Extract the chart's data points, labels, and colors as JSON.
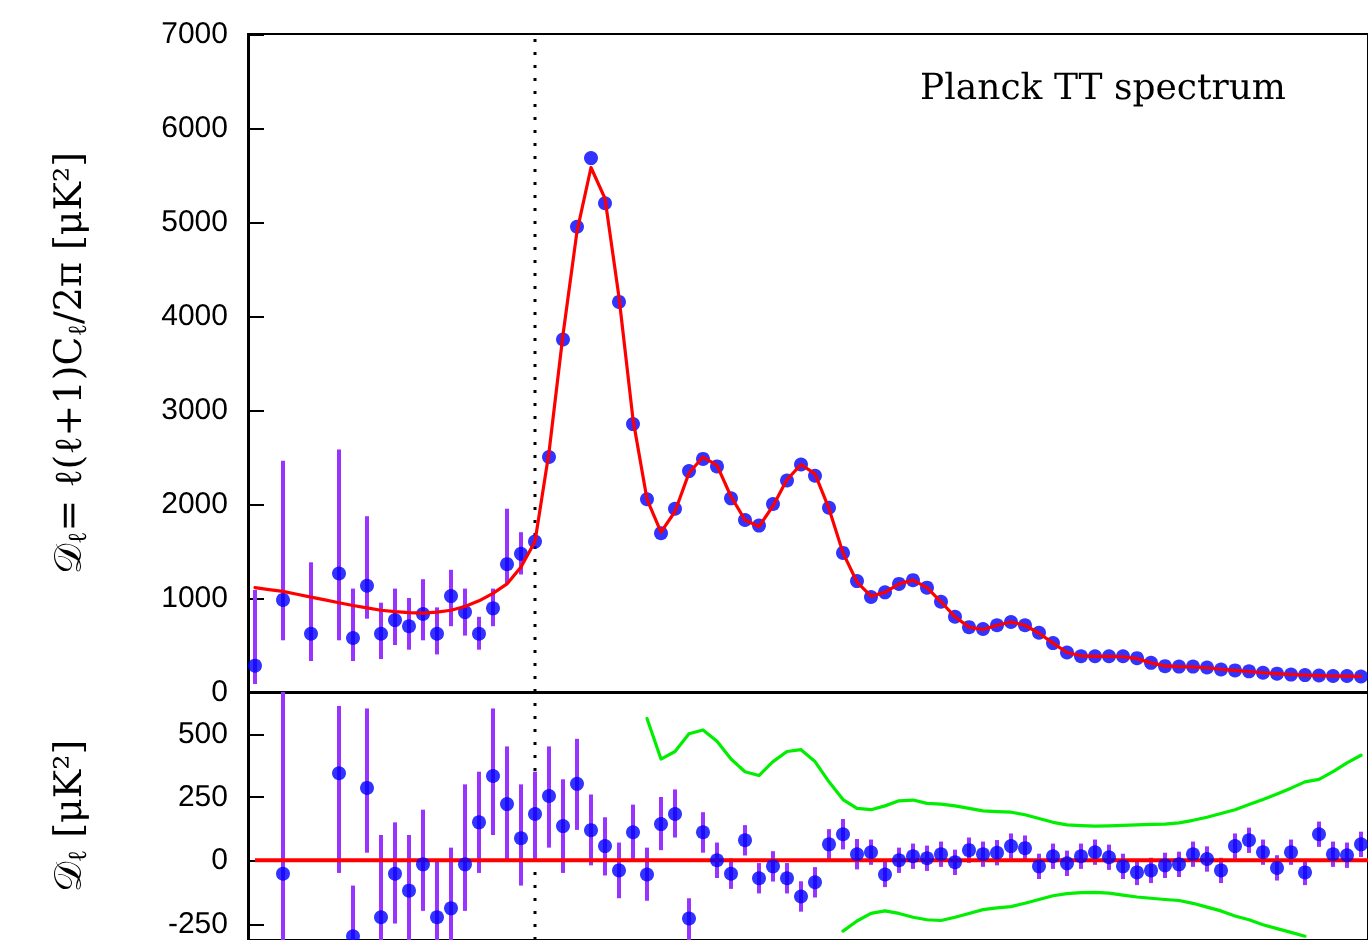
{
  "chart_data": [
    {
      "type": "scatter",
      "title": "Planck TT spectrum",
      "ylabel": "𝒟$_{ℓ}$= ℓ(ℓ+1)C$_{ℓ}$/2π [μK²]",
      "tick_labels": "y",
      "grid": false,
      "categories": [
        null,
        null,
        null,
        null,
        null,
        null,
        null,
        null,
        null,
        null,
        null,
        null,
        null,
        null,
        null,
        null,
        null,
        null,
        null,
        null,
        null,
        null,
        null,
        null,
        null,
        null,
        null,
        null,
        null,
        null,
        null,
        null,
        null,
        null,
        null,
        null,
        null,
        null,
        null,
        null,
        null,
        null,
        null,
        null,
        null,
        null,
        null,
        null,
        null,
        null,
        null,
        null,
        null,
        null,
        null,
        null,
        null,
        null,
        null,
        null,
        null,
        null,
        null,
        null,
        null,
        null,
        null,
        null,
        null,
        null,
        null,
        null,
        null,
        null,
        null,
        null,
        null,
        null,
        null,
        null
      ],
      "ylim": [
        0,
        7000
      ],
      "yticks": [
        0,
        1000,
        2000,
        3000,
        4000,
        5000,
        6000,
        7000
      ],
      "series": [
        {
          "type": "line",
          "color": "#ff0000",
          "marker": "none",
          "line_style": "solid",
          "values": [
            1110,
            1090,
            1070,
            1040,
            1010,
            980,
            950,
            920,
            895,
            870,
            855,
            845,
            840,
            850,
            870,
            910,
            970,
            1050,
            1150,
            1330,
            1600,
            2550,
            3800,
            4900,
            5580,
            5250,
            4200,
            2900,
            2050,
            1700,
            1920,
            2330,
            2500,
            2410,
            2080,
            1830,
            1760,
            1980,
            2260,
            2420,
            2320,
            1950,
            1480,
            1170,
            1020,
            1060,
            1150,
            1190,
            1110,
            960,
            800,
            690,
            665,
            710,
            745,
            710,
            625,
            520,
            420,
            385,
            380,
            378,
            375,
            355,
            310,
            278,
            270,
            268,
            258,
            242,
            230,
            218,
            205,
            195,
            186,
            180,
            174,
            170,
            168,
            165
          ]
        },
        {
          "color": "#0000ff",
          "marker": "circle",
          "values": [
            280,
            null,
            980,
            null,
            620,
            null,
            1260,
            575,
            1130,
            620,
            765,
            700,
            830,
            620,
            1020,
            850,
            620,
            890,
            1360,
            1470,
            1600,
            2500,
            3750,
            4950,
            5680,
            5200,
            4150,
            2850,
            2050,
            1690,
            1950,
            2350,
            2480,
            2400,
            2060,
            1830,
            1770,
            2000,
            2250,
            2420,
            2300,
            1960,
            1480,
            1180,
            1010,
            1060,
            1150,
            1190,
            1110,
            960,
            800,
            690,
            670,
            710,
            745,
            710,
            630,
            520,
            420,
            380,
            380,
            380,
            380,
            360,
            310,
            275,
            270,
            270,
            260,
            240,
            230,
            220,
            205,
            195,
            185,
            180,
            175,
            170,
            170,
            165
          ],
          "errors": [
            [
              85,
              1085
            ],
            null,
            [
              550,
              2460
            ],
            null,
            [
              330,
              1380
            ],
            null,
            [
              550,
              2580
            ],
            [
              330,
              1100
            ],
            [
              780,
              1870
            ],
            [
              350,
              950
            ],
            [
              500,
              1100
            ],
            [
              450,
              1000
            ],
            [
              550,
              1200
            ],
            [
              400,
              900
            ],
            [
              700,
              1300
            ],
            [
              600,
              1100
            ],
            [
              450,
              800
            ],
            [
              700,
              1100
            ],
            [
              1150,
              1950
            ],
            [
              1250,
              1700
            ],
            null,
            null,
            null,
            null,
            null,
            null,
            null,
            null,
            null,
            null,
            null,
            null,
            null,
            null,
            null,
            null,
            null,
            null,
            null,
            null,
            null,
            null,
            null,
            null,
            null,
            null,
            null,
            null,
            null,
            null,
            null,
            null,
            null,
            null,
            null,
            null,
            null,
            null,
            null,
            null,
            null,
            null,
            null,
            null,
            null,
            null,
            null,
            null,
            null,
            null,
            null,
            null,
            null,
            null,
            null,
            null,
            null,
            null,
            null,
            null
          ]
        }
      ]
    },
    {
      "type": "scatter",
      "ylabel": "𝒟$_{ℓ}$ [μK²]",
      "tick_labels": "y",
      "grid": false,
      "categories": [
        null,
        null,
        null,
        null,
        null,
        null,
        null,
        null,
        null,
        null,
        null,
        null,
        null,
        null,
        null,
        null,
        null,
        null,
        null,
        null,
        null,
        null,
        null,
        null,
        null,
        null,
        null,
        null,
        null,
        null,
        null,
        null,
        null,
        null,
        null,
        null,
        null,
        null,
        null,
        null,
        null,
        null,
        null,
        null,
        null,
        null,
        null,
        null,
        null,
        null,
        null,
        null,
        null,
        null,
        null,
        null,
        null,
        null,
        null,
        null,
        null,
        null,
        null,
        null,
        null,
        null,
        null,
        null,
        null,
        null,
        null,
        null,
        null,
        null,
        null,
        null,
        null,
        null,
        null,
        null
      ],
      "ylim": [
        -315,
        665
      ],
      "yticks": [
        -250,
        0,
        250,
        500
      ],
      "ref_lines": [
        {
          "axis": "y",
          "value": 0,
          "color": "#ff0000",
          "line_style": "solid"
        }
      ],
      "series": [
        {
          "type": "line",
          "color": "#00ee00",
          "marker": "none",
          "line_style": "solid",
          "values": [
            null,
            null,
            null,
            null,
            null,
            null,
            null,
            null,
            null,
            null,
            null,
            null,
            null,
            null,
            null,
            null,
            null,
            null,
            null,
            null,
            null,
            null,
            null,
            null,
            null,
            null,
            null,
            null,
            560,
            400,
            430,
            500,
            515,
            470,
            400,
            350,
            335,
            390,
            430,
            437,
            390,
            310,
            240,
            205,
            200,
            215,
            235,
            238,
            225,
            222,
            215,
            205,
            195,
            192,
            190,
            180,
            165,
            150,
            140,
            137,
            135,
            136,
            138,
            140,
            142,
            143,
            148,
            158,
            170,
            185,
            200,
            220,
            240,
            262,
            285,
            310,
            320,
            350,
            385,
            415
          ]
        },
        {
          "type": "line",
          "color": "#00ee00",
          "marker": "none",
          "line_style": "solid",
          "values": [
            null,
            null,
            null,
            null,
            null,
            null,
            null,
            null,
            null,
            null,
            null,
            null,
            null,
            null,
            null,
            null,
            null,
            null,
            null,
            null,
            null,
            null,
            null,
            null,
            null,
            null,
            null,
            null,
            null,
            null,
            null,
            null,
            null,
            null,
            null,
            null,
            null,
            null,
            null,
            null,
            null,
            null,
            -280,
            -240,
            -210,
            -200,
            -210,
            -225,
            -235,
            -238,
            -225,
            -210,
            -195,
            -188,
            -183,
            -170,
            -155,
            -140,
            -132,
            -128,
            -127,
            -130,
            -138,
            -145,
            -150,
            -155,
            -159,
            -170,
            -185,
            -200,
            -220,
            -235,
            -255,
            -270,
            -285,
            -300,
            null,
            null,
            null,
            null
          ]
        },
        {
          "color": "#0000ff",
          "marker": "circle",
          "values": [
            null,
            null,
            -53,
            null,
            null,
            null,
            344,
            -300,
            286,
            -225,
            -53,
            -120,
            -16,
            -225,
            -190,
            -16,
            150,
            333,
            222,
            87,
            183,
            254,
            135,
            302,
            119,
            56,
            -40,
            111,
            -56,
            143,
            183,
            -230,
            111,
            0,
            -53,
            79,
            -71,
            -24,
            -71,
            -143,
            -87,
            63,
            103,
            24,
            32,
            -56,
            0,
            16,
            8,
            24,
            -8,
            40,
            24,
            30,
            56,
            48,
            -24,
            16,
            -12,
            16,
            32,
            12,
            -24,
            -48,
            -40,
            -20,
            -16,
            24,
            5,
            -40,
            56,
            79,
            32,
            -30,
            32,
            -48,
            103,
            24,
            20,
            63
          ],
          "errors": [
            null,
            null,
            [
              -315,
              665
            ],
            null,
            null,
            null,
            [
              -50,
              610
            ],
            [
              -315,
              -100
            ],
            [
              30,
              600
            ],
            [
              -315,
              100
            ],
            [
              -250,
              150
            ],
            [
              -315,
              100
            ],
            [
              -200,
              200
            ],
            [
              -315,
              0
            ],
            [
              -315,
              50
            ],
            [
              -200,
              300
            ],
            [
              -50,
              350
            ],
            [
              100,
              600
            ],
            [
              0,
              450
            ],
            [
              -100,
              300
            ],
            [
              0,
              350
            ],
            [
              50,
              450
            ],
            [
              -50,
              320
            ],
            [
              120,
              480
            ],
            [
              -20,
              260
            ],
            [
              -60,
              170
            ],
            [
              -150,
              70
            ],
            [
              0,
              220
            ],
            [
              -160,
              50
            ],
            [
              40,
              250
            ],
            [
              90,
              280
            ],
            [
              -315,
              -150
            ],
            [
              30,
              190
            ],
            [
              -70,
              70
            ],
            60,
            60,
            60,
            60,
            60,
            60,
            60,
            60,
            60,
            60,
            50,
            50,
            50,
            50,
            50,
            50,
            50,
            50,
            50,
            50,
            50,
            50,
            50,
            50,
            50,
            50,
            50,
            50,
            50,
            50,
            50,
            50,
            50,
            50,
            50,
            50,
            50,
            50,
            50,
            50,
            50,
            50,
            50,
            50,
            50,
            50
          ]
        }
      ]
    }
  ]
}
